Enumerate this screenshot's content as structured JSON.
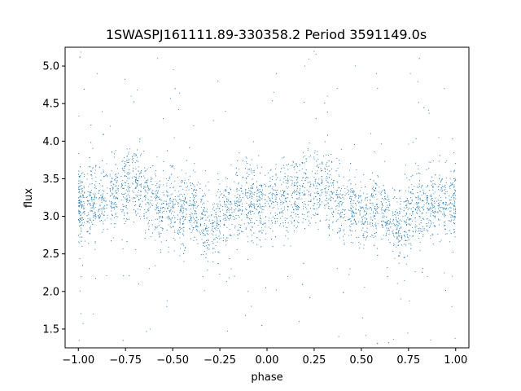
{
  "chart_data": {
    "type": "scatter",
    "title": "1SWASPJ161111.89-330358.2 Period 3591149.0s",
    "xlabel": "phase",
    "ylabel": "flux",
    "xlim": [
      -1.07,
      1.07
    ],
    "ylim": [
      1.25,
      5.25
    ],
    "grid": false,
    "legend": "none",
    "marker_color": "#1f77b4",
    "x_ticks": [
      -1.0,
      -0.75,
      -0.5,
      -0.25,
      0.0,
      0.25,
      0.5,
      0.75,
      1.0
    ],
    "x_tick_labels": [
      "−1.00",
      "−0.75",
      "−0.50",
      "−0.25",
      "0.00",
      "0.25",
      "0.50",
      "0.75",
      "1.00"
    ],
    "y_ticks": [
      1.5,
      2.0,
      2.5,
      3.0,
      3.5,
      4.0,
      4.5,
      5.0
    ],
    "y_tick_labels": [
      "1.5",
      "2.0",
      "2.5",
      "3.0",
      "3.5",
      "4.0",
      "4.5",
      "5.0"
    ],
    "series": [
      {
        "mean_flux_profile": {
          "phase": [
            0.0,
            0.1,
            0.2,
            0.3,
            0.4,
            0.5,
            0.6,
            0.7,
            0.8,
            0.9,
            1.0
          ],
          "flux": [
            3.15,
            3.2,
            3.3,
            3.45,
            3.15,
            3.05,
            3.1,
            2.8,
            3.15,
            3.2,
            3.15
          ]
        }
      }
    ],
    "points": [
      [
        -0.99,
        3.05
      ],
      [
        -0.97,
        3.4
      ],
      [
        -0.95,
        3.2
      ],
      [
        -0.93,
        3.6
      ],
      [
        -0.91,
        3.3
      ],
      [
        -0.88,
        3.1
      ],
      [
        -0.85,
        3.7
      ],
      [
        -0.82,
        3.5
      ],
      [
        -0.8,
        3.0
      ],
      [
        -0.77,
        3.3
      ],
      [
        -0.74,
        3.8
      ],
      [
        -0.71,
        3.6
      ],
      [
        -0.69,
        3.4
      ],
      [
        -0.66,
        3.2
      ],
      [
        -0.63,
        2.9
      ],
      [
        -0.6,
        3.3
      ],
      [
        -0.57,
        3.0
      ],
      [
        -0.54,
        3.1
      ],
      [
        -0.51,
        2.9
      ],
      [
        -0.48,
        3.2
      ],
      [
        -0.45,
        3.0
      ],
      [
        -0.42,
        3.4
      ],
      [
        -0.39,
        3.1
      ],
      [
        -0.36,
        2.8
      ],
      [
        -0.33,
        2.6
      ],
      [
        -0.3,
        2.9
      ],
      [
        -0.27,
        3.1
      ],
      [
        -0.24,
        3.3
      ],
      [
        -0.21,
        3.5
      ],
      [
        -0.18,
        3.0
      ],
      [
        -0.15,
        3.2
      ],
      [
        -0.12,
        2.9
      ],
      [
        -0.09,
        3.3
      ],
      [
        -0.06,
        3.1
      ],
      [
        -0.03,
        3.4
      ],
      [
        0.0,
        3.2
      ],
      [
        0.03,
        3.3
      ],
      [
        0.06,
        3.1
      ],
      [
        0.09,
        3.5
      ],
      [
        0.12,
        3.2
      ],
      [
        0.15,
        3.7
      ],
      [
        0.18,
        3.4
      ],
      [
        0.21,
        3.1
      ],
      [
        0.24,
        3.6
      ],
      [
        0.27,
        3.3
      ],
      [
        0.3,
        3.8
      ],
      [
        0.33,
        3.4
      ],
      [
        0.36,
        3.2
      ],
      [
        0.39,
        3.0
      ],
      [
        0.42,
        3.3
      ],
      [
        0.45,
        3.0
      ],
      [
        0.48,
        3.2
      ],
      [
        0.51,
        2.9
      ],
      [
        0.54,
        3.1
      ],
      [
        0.57,
        3.0
      ],
      [
        0.6,
        3.3
      ],
      [
        0.63,
        3.1
      ],
      [
        0.66,
        2.9
      ],
      [
        0.69,
        2.7
      ],
      [
        0.72,
        3.0
      ],
      [
        0.75,
        3.2
      ],
      [
        0.78,
        3.4
      ],
      [
        0.81,
        3.0
      ],
      [
        0.84,
        3.3
      ],
      [
        0.87,
        3.1
      ],
      [
        0.9,
        3.2
      ],
      [
        0.93,
        3.4
      ],
      [
        0.96,
        3.1
      ],
      [
        0.99,
        3.5
      ],
      [
        -0.98,
        2.6
      ],
      [
        -0.83,
        4.2
      ],
      [
        -0.72,
        4.6
      ],
      [
        -0.68,
        2.1
      ],
      [
        -0.62,
        1.5
      ],
      [
        -0.55,
        4.3
      ],
      [
        -0.44,
        2.4
      ],
      [
        -0.34,
        2.2
      ],
      [
        -0.22,
        4.4
      ],
      [
        -0.19,
        2.3
      ],
      [
        -0.1,
        2.0
      ],
      [
        0.05,
        4.9
      ],
      [
        0.11,
        2.2
      ],
      [
        0.17,
        1.6
      ],
      [
        0.26,
        4.3
      ],
      [
        0.32,
        4.6
      ],
      [
        0.38,
        1.4
      ],
      [
        0.44,
        2.3
      ],
      [
        0.55,
        4.1
      ],
      [
        0.64,
        2.2
      ],
      [
        0.71,
        1.9
      ],
      [
        0.76,
        4.9
      ],
      [
        0.85,
        2.2
      ],
      [
        0.94,
        4.7
      ],
      [
        0.98,
        1.8
      ],
      [
        -0.9,
        4.9
      ],
      [
        -0.58,
        5.1
      ],
      [
        -0.26,
        4.8
      ],
      [
        0.2,
        5.0
      ],
      [
        0.58,
        4.9
      ]
    ]
  }
}
